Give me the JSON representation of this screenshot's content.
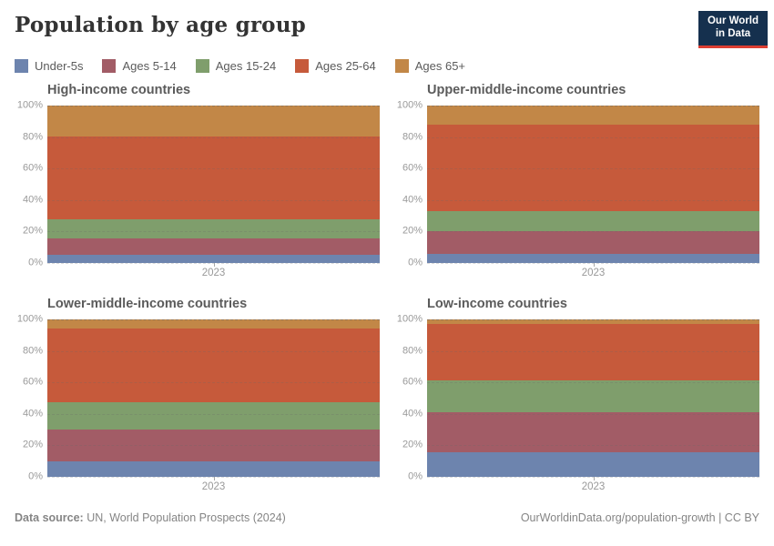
{
  "header": {
    "title": "Population by age group",
    "logo": {
      "line1": "Our World",
      "line2": "in Data"
    }
  },
  "chart_data": {
    "type": "area",
    "stacked": true,
    "unit": "%",
    "ylim": [
      0,
      100
    ],
    "grid": true,
    "legend_position": "top",
    "y_tick_labels": [
      "0%",
      "20%",
      "40%",
      "60%",
      "80%",
      "100%"
    ],
    "x_tick_label": "2023",
    "series": [
      {
        "name": "Under-5s",
        "color": "#6d84ae"
      },
      {
        "name": "Ages 5-14",
        "color": "#a25c66"
      },
      {
        "name": "Ages 15-24",
        "color": "#7f9e6c"
      },
      {
        "name": "Ages 25-64",
        "color": "#c65a3b"
      },
      {
        "name": "Ages 65+",
        "color": "#c28747"
      }
    ],
    "panels": [
      {
        "title": "High-income countries",
        "values": [
          5,
          10.5,
          12,
          53,
          19.5
        ]
      },
      {
        "title": "Upper-middle-income countries",
        "values": [
          6,
          14,
          13,
          55,
          12
        ]
      },
      {
        "title": "Lower-middle-income countries",
        "values": [
          10,
          20,
          17.5,
          46.5,
          6
        ]
      },
      {
        "title": "Low-income countries",
        "values": [
          15.5,
          25.5,
          20.5,
          35.5,
          3
        ]
      }
    ]
  },
  "footer": {
    "source_label": "Data source:",
    "source_text": " UN, World Population Prospects (2024)",
    "right_text": "OurWorldinData.org/population-growth | CC BY"
  }
}
